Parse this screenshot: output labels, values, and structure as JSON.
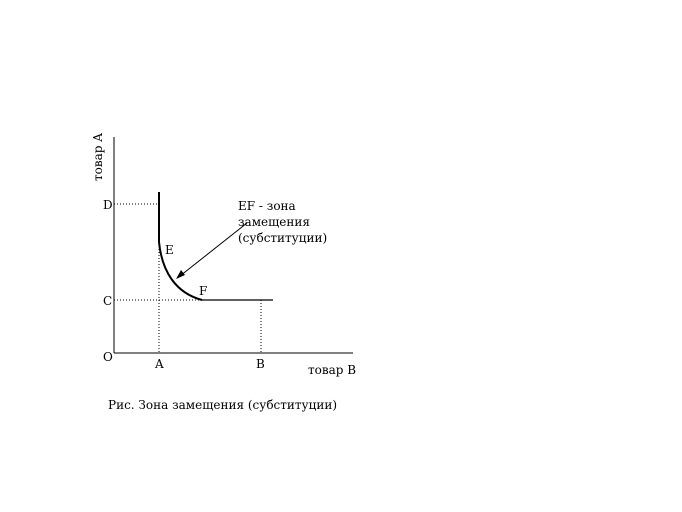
{
  "axes": {
    "y_title": "товар A",
    "x_title": "товар B",
    "origin": "O"
  },
  "points": {
    "D": "D",
    "C": "C",
    "A": "A",
    "B": "B",
    "E": "E",
    "F": "F"
  },
  "annotation": {
    "line1": "EF - зона",
    "line2": "замещения",
    "line3": "(субституции)"
  },
  "caption": "Рис. Зона замещения (субституции)"
}
